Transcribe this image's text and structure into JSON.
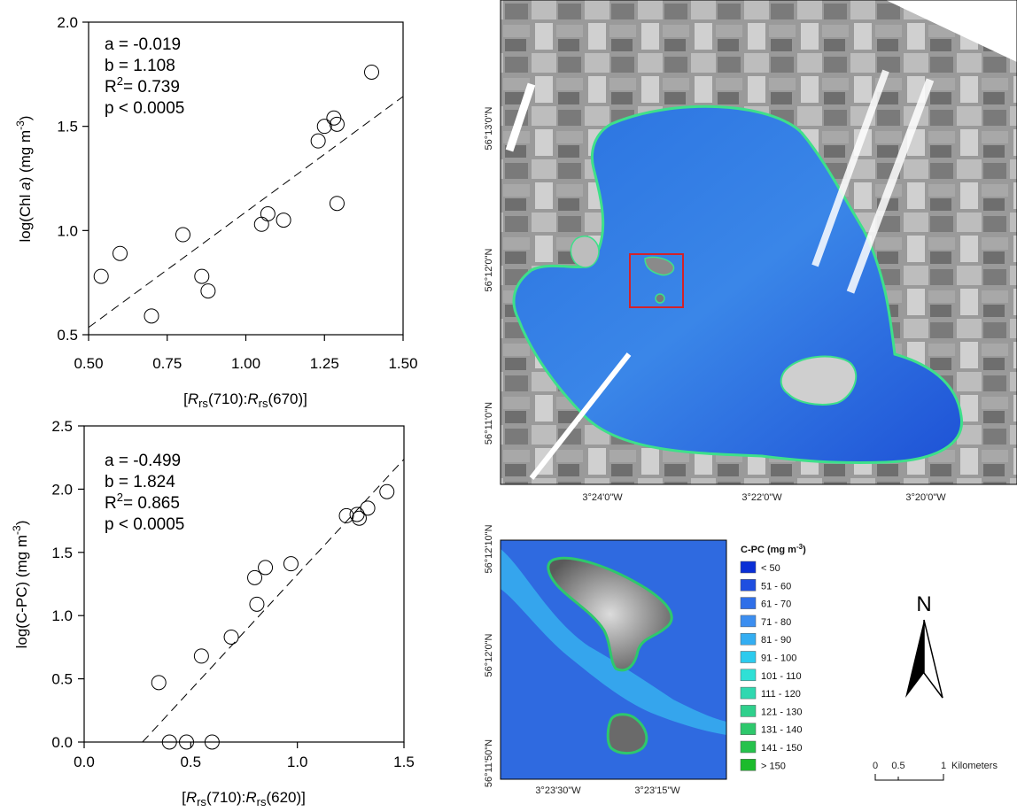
{
  "chart_data": [
    {
      "type": "scatter",
      "xlabel": "[Rrs(710):Rrs(670)]",
      "ylabel": "log(Chl a) (mg m-3)",
      "xlim": [
        0.5,
        1.5
      ],
      "ylim": [
        0.5,
        2.0
      ],
      "xticks": [
        "0.50",
        "0.75",
        "1.00",
        "1.25",
        "1.50"
      ],
      "yticks": [
        "0.5",
        "1.0",
        "1.5",
        "2.0"
      ],
      "points": [
        {
          "x": 0.54,
          "y": 0.78
        },
        {
          "x": 0.6,
          "y": 0.89
        },
        {
          "x": 0.7,
          "y": 0.59
        },
        {
          "x": 0.8,
          "y": 0.98
        },
        {
          "x": 0.86,
          "y": 0.78
        },
        {
          "x": 0.88,
          "y": 0.71
        },
        {
          "x": 1.05,
          "y": 1.03
        },
        {
          "x": 1.07,
          "y": 1.08
        },
        {
          "x": 1.12,
          "y": 1.05
        },
        {
          "x": 1.23,
          "y": 1.43
        },
        {
          "x": 1.25,
          "y": 1.5
        },
        {
          "x": 1.28,
          "y": 1.54
        },
        {
          "x": 1.29,
          "y": 1.51
        },
        {
          "x": 1.29,
          "y": 1.13
        },
        {
          "x": 1.4,
          "y": 1.76
        }
      ],
      "regression": {
        "a": -0.019,
        "b": 1.108
      },
      "stats": {
        "a": "a = -0.019",
        "b": "b = 1.108",
        "r2": "= 0.739",
        "p": "p < 0.0005"
      }
    },
    {
      "type": "scatter",
      "xlabel": "[Rrs(710):Rrs(620)]",
      "ylabel": "log(C-PC) (mg m-3)",
      "xlim": [
        0.0,
        1.5
      ],
      "ylim": [
        0.0,
        2.5
      ],
      "xticks": [
        "0.0",
        "0.5",
        "1.0",
        "1.5"
      ],
      "yticks": [
        "0.0",
        "0.5",
        "1.0",
        "1.5",
        "2.0",
        "2.5"
      ],
      "points": [
        {
          "x": 0.35,
          "y": 0.47
        },
        {
          "x": 0.4,
          "y": 0.0
        },
        {
          "x": 0.48,
          "y": 0.0
        },
        {
          "x": 0.6,
          "y": 0.0
        },
        {
          "x": 0.55,
          "y": 0.68
        },
        {
          "x": 0.69,
          "y": 0.83
        },
        {
          "x": 0.8,
          "y": 1.3
        },
        {
          "x": 0.81,
          "y": 1.09
        },
        {
          "x": 0.85,
          "y": 1.38
        },
        {
          "x": 0.97,
          "y": 1.41
        },
        {
          "x": 1.23,
          "y": 1.79
        },
        {
          "x": 1.28,
          "y": 1.8
        },
        {
          "x": 1.29,
          "y": 1.77
        },
        {
          "x": 1.33,
          "y": 1.85
        },
        {
          "x": 1.42,
          "y": 1.98
        }
      ],
      "regression": {
        "a": -0.499,
        "b": 1.824
      },
      "stats": {
        "a": "a = -0.499",
        "b": "b = 1.824",
        "r2": "= 0.865",
        "p": "p < 0.0005"
      }
    }
  ],
  "map": {
    "lat_labels": [
      "56°13'0\"N",
      "56°12'0\"N",
      "56°11'0\"N"
    ],
    "lon_labels": [
      "3°24'0\"W",
      "3°22'0\"W",
      "3°20'0\"W"
    ],
    "inset_lat_labels": [
      "56°12'10\"N",
      "56°12'0\"N",
      "56°11'50\"N"
    ],
    "inset_lon_labels": [
      "3°23'30\"W",
      "3°23'15\"W"
    ],
    "highlight_color": "#d3222a"
  },
  "legend": {
    "title": "C-PC (mg m-3)",
    "classes": [
      {
        "label": "< 50",
        "color": "#0a2fd6"
      },
      {
        "label": "51 - 60",
        "color": "#1f4fe0"
      },
      {
        "label": "61 - 70",
        "color": "#2f6fe8"
      },
      {
        "label": "71 - 80",
        "color": "#3c8ef0"
      },
      {
        "label": "81 - 90",
        "color": "#34aef2"
      },
      {
        "label": "91 - 100",
        "color": "#2ccbee"
      },
      {
        "label": "101 - 110",
        "color": "#2fe0d6"
      },
      {
        "label": "111 - 120",
        "color": "#2fd8b0"
      },
      {
        "label": "121 - 130",
        "color": "#2fd08c"
      },
      {
        "label": "131 - 140",
        "color": "#2ec86c"
      },
      {
        "label": "141 - 150",
        "color": "#26c24c"
      },
      {
        "label": "> 150",
        "color": "#1cbb2c"
      }
    ]
  },
  "north_arrow": {
    "label": "N"
  },
  "scale_bar": {
    "ticks": [
      "0",
      "0.5",
      "1"
    ],
    "unit": "Kilometers"
  }
}
